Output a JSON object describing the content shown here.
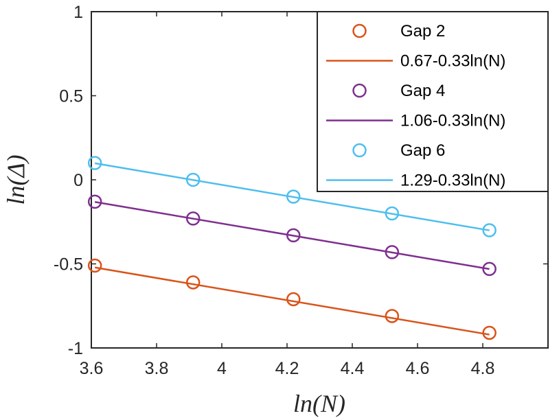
{
  "chart_data": {
    "type": "line",
    "title": "",
    "xlabel": "ln(N)",
    "ylabel": "ln(Δ)",
    "xlim": [
      3.6,
      5.0
    ],
    "ylim": [
      -1,
      1
    ],
    "xticks": [
      3.6,
      3.8,
      4.0,
      4.2,
      4.4,
      4.6,
      4.8
    ],
    "xtick_labels": [
      "3.6",
      "3.8",
      "4",
      "4.2",
      "4.4",
      "4.6",
      "4.8"
    ],
    "yticks": [
      -1,
      -0.5,
      0,
      0.5,
      1
    ],
    "ytick_labels": [
      "-1",
      "-0.5",
      "0",
      "0.5",
      "1"
    ],
    "grid": false,
    "legend_position": "top-right",
    "x": [
      3.6109,
      3.912,
      4.2195,
      4.5218,
      4.8203
    ],
    "series": [
      {
        "name": "Gap 2",
        "fit_label": "0.67-0.33ln(N)",
        "color": "#D95319",
        "values": [
          -0.51,
          -0.61,
          -0.71,
          -0.81,
          -0.91
        ],
        "fit": {
          "intercept": 0.67,
          "slope": -0.33
        }
      },
      {
        "name": "Gap 4",
        "fit_label": "1.06-0.33ln(N)",
        "color": "#7E2F8E",
        "values": [
          -0.13,
          -0.23,
          -0.33,
          -0.43,
          -0.53
        ],
        "fit": {
          "intercept": 1.06,
          "slope": -0.33
        }
      },
      {
        "name": "Gap 6",
        "fit_label": "1.29-0.33ln(N)",
        "color": "#4DBEEE",
        "values": [
          0.1,
          0.0,
          -0.1,
          -0.2,
          -0.3
        ],
        "fit": {
          "intercept": 1.29,
          "slope": -0.33
        }
      }
    ]
  }
}
